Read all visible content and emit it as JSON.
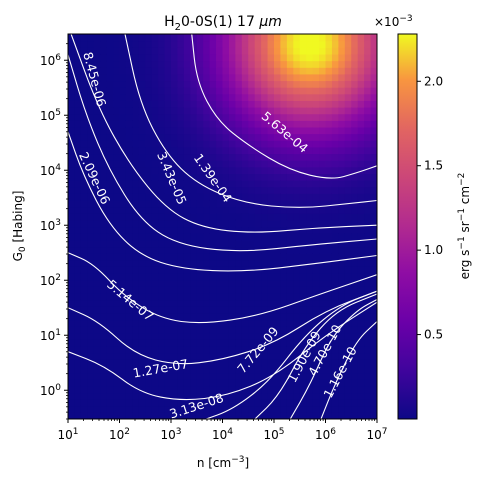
{
  "chart_data": {
    "type": "heatmap",
    "title_prefix": "H",
    "title_sub": "2",
    "title_mid": "0-0S(1) 17 ",
    "title_unit": "μm",
    "xlabel_prefix": "n [cm",
    "xlabel_sup": "−3",
    "xlabel_suffix": "]",
    "ylabel_main": "G",
    "ylabel_sub": "0",
    "ylabel_suffix": " [Habing]",
    "x_scale": "log",
    "y_scale": "log",
    "xlim": [
      10,
      10000000
    ],
    "ylim": [
      0.3,
      3000000
    ],
    "x_ticks": [
      {
        "base": "10",
        "exp": "1",
        "value": 10
      },
      {
        "base": "10",
        "exp": "2",
        "value": 100
      },
      {
        "base": "10",
        "exp": "3",
        "value": 1000
      },
      {
        "base": "10",
        "exp": "4",
        "value": 10000
      },
      {
        "base": "10",
        "exp": "5",
        "value": 100000
      },
      {
        "base": "10",
        "exp": "6",
        "value": 1000000
      },
      {
        "base": "10",
        "exp": "7",
        "value": 10000000
      }
    ],
    "y_ticks": [
      {
        "base": "10",
        "exp": "0",
        "value": 1
      },
      {
        "base": "10",
        "exp": "1",
        "value": 10
      },
      {
        "base": "10",
        "exp": "2",
        "value": 100
      },
      {
        "base": "10",
        "exp": "3",
        "value": 1000
      },
      {
        "base": "10",
        "exp": "4",
        "value": 10000
      },
      {
        "base": "10",
        "exp": "5",
        "value": 100000
      },
      {
        "base": "10",
        "exp": "6",
        "value": 1000000
      }
    ],
    "colormap": "plasma",
    "colorbar": {
      "label_main": "erg s",
      "label_sup1": "−1",
      "label_mid": " sr",
      "label_sup2": "−1",
      "label_end": " cm",
      "label_sup3": "−2",
      "offset_prefix": "×10",
      "offset_exp": "−3",
      "vmin": 0.0,
      "vmax": 0.00228,
      "ticks": [
        {
          "label": "0.5",
          "value": 0.0005
        },
        {
          "label": "1.0",
          "value": 0.001
        },
        {
          "label": "1.5",
          "value": 0.0015
        },
        {
          "label": "2.0",
          "value": 0.002
        }
      ]
    },
    "contour_levels": [
      {
        "label": "5.63e-04",
        "value": 0.000563
      },
      {
        "label": "1.39e-04",
        "value": 0.000139
      },
      {
        "label": "3.43e-05",
        "value": 3.43e-05
      },
      {
        "label": "8.45e-06",
        "value": 8.45e-06
      },
      {
        "label": "2.09e-06",
        "value": 2.09e-06
      },
      {
        "label": "5.14e-07",
        "value": 5.14e-07
      },
      {
        "label": "1.27e-07",
        "value": 1.27e-07
      },
      {
        "label": "3.13e-08",
        "value": 3.13e-08
      },
      {
        "label": "7.72e-09",
        "value": 7.72e-09
      },
      {
        "label": "1.90e-09",
        "value": 1.9e-09
      },
      {
        "label": "4.70e-10",
        "value": 4.7e-10
      },
      {
        "label": "1.16e-10",
        "value": 1.16e-10
      }
    ]
  }
}
